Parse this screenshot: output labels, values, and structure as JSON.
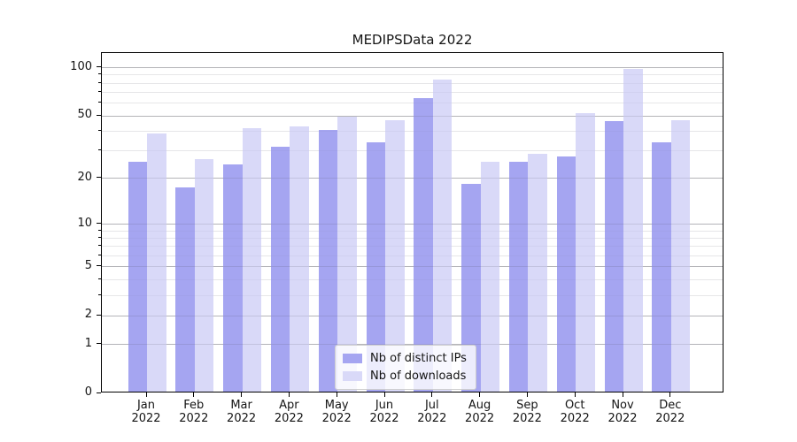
{
  "chart_data": {
    "type": "bar",
    "title": "MEDIPSData 2022",
    "categories": [
      "Jan",
      "Feb",
      "Mar",
      "Apr",
      "May",
      "Jun",
      "Jul",
      "Aug",
      "Sep",
      "Oct",
      "Nov",
      "Dec"
    ],
    "category_year": "2022",
    "series": [
      {
        "name": "Nb of distinct IPs",
        "color": "#a5a5f1",
        "values": [
          25,
          17,
          24,
          31,
          40,
          33,
          63,
          18,
          25,
          27,
          45,
          33
        ]
      },
      {
        "name": "Nb of downloads",
        "color": "#d9d9f8",
        "values": [
          38,
          26,
          41,
          42,
          48,
          46,
          82,
          25,
          28,
          51,
          96,
          46
        ]
      }
    ],
    "yscale": "log1p",
    "ylim": [
      0,
      100
    ],
    "yticks": [
      100,
      50,
      20,
      10,
      5,
      2,
      1,
      0
    ],
    "minor_yticks": [
      3,
      4,
      6,
      7,
      8,
      9,
      30,
      40,
      60,
      70,
      80,
      90
    ],
    "grid": true,
    "legend_position": "lower center",
    "colors": {
      "major_grid": "#c9c9c9",
      "minor_grid": "#efefef",
      "axis": "#000000",
      "text": "#141414",
      "background": "#ffffff"
    }
  }
}
